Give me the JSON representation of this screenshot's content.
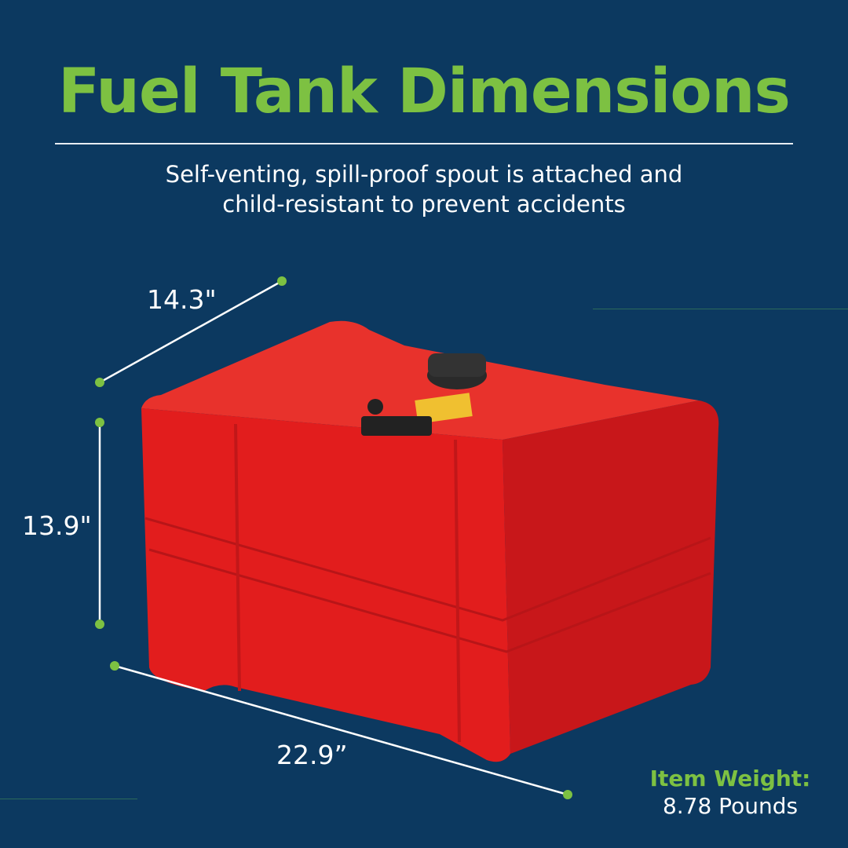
{
  "title": "Fuel Tank Dimensions",
  "subtitle_line1": "Self-venting, spill-proof spout is attached and",
  "subtitle_line2": "child-resistant to prevent accidents",
  "dimensions": {
    "depth": "14.3\"",
    "height": "13.9\"",
    "length": "22.9”"
  },
  "weight": {
    "label": "Item Weight:",
    "value": "8.78 Pounds"
  },
  "colors": {
    "background": "#0c3960",
    "accent": "#7dc142",
    "tank": "#e21d1d"
  }
}
